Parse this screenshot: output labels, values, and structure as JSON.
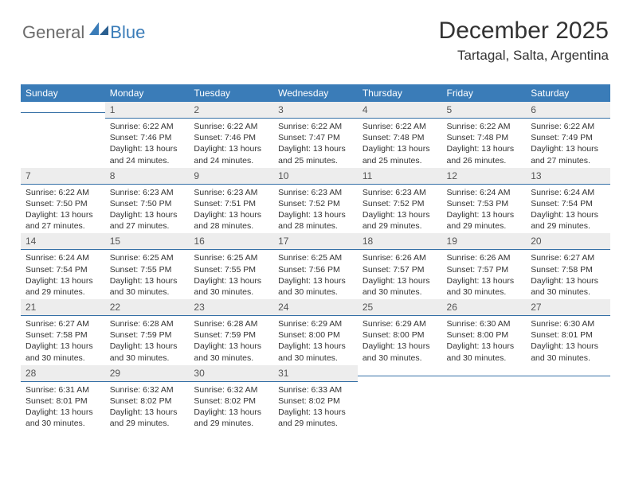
{
  "logo": {
    "word1": "General",
    "word2": "Blue"
  },
  "header": {
    "month_title": "December 2025",
    "location": "Tartagal, Salta, Argentina"
  },
  "colors": {
    "accent": "#3a7cb8",
    "header_text": "#ffffff",
    "daynum_bg": "#ededed",
    "daynum_border": "#3670a6",
    "body_text": "#333333",
    "logo_gray": "#6b6b6b"
  },
  "calendar": {
    "day_headers": [
      "Sunday",
      "Monday",
      "Tuesday",
      "Wednesday",
      "Thursday",
      "Friday",
      "Saturday"
    ],
    "weeks": [
      [
        null,
        {
          "n": "1",
          "sunrise": "6:22 AM",
          "sunset": "7:46 PM",
          "day_h": "13",
          "day_m": "24"
        },
        {
          "n": "2",
          "sunrise": "6:22 AM",
          "sunset": "7:46 PM",
          "day_h": "13",
          "day_m": "24"
        },
        {
          "n": "3",
          "sunrise": "6:22 AM",
          "sunset": "7:47 PM",
          "day_h": "13",
          "day_m": "25"
        },
        {
          "n": "4",
          "sunrise": "6:22 AM",
          "sunset": "7:48 PM",
          "day_h": "13",
          "day_m": "25"
        },
        {
          "n": "5",
          "sunrise": "6:22 AM",
          "sunset": "7:48 PM",
          "day_h": "13",
          "day_m": "26"
        },
        {
          "n": "6",
          "sunrise": "6:22 AM",
          "sunset": "7:49 PM",
          "day_h": "13",
          "day_m": "27"
        }
      ],
      [
        {
          "n": "7",
          "sunrise": "6:22 AM",
          "sunset": "7:50 PM",
          "day_h": "13",
          "day_m": "27"
        },
        {
          "n": "8",
          "sunrise": "6:23 AM",
          "sunset": "7:50 PM",
          "day_h": "13",
          "day_m": "27"
        },
        {
          "n": "9",
          "sunrise": "6:23 AM",
          "sunset": "7:51 PM",
          "day_h": "13",
          "day_m": "28"
        },
        {
          "n": "10",
          "sunrise": "6:23 AM",
          "sunset": "7:52 PM",
          "day_h": "13",
          "day_m": "28"
        },
        {
          "n": "11",
          "sunrise": "6:23 AM",
          "sunset": "7:52 PM",
          "day_h": "13",
          "day_m": "29"
        },
        {
          "n": "12",
          "sunrise": "6:24 AM",
          "sunset": "7:53 PM",
          "day_h": "13",
          "day_m": "29"
        },
        {
          "n": "13",
          "sunrise": "6:24 AM",
          "sunset": "7:54 PM",
          "day_h": "13",
          "day_m": "29"
        }
      ],
      [
        {
          "n": "14",
          "sunrise": "6:24 AM",
          "sunset": "7:54 PM",
          "day_h": "13",
          "day_m": "29"
        },
        {
          "n": "15",
          "sunrise": "6:25 AM",
          "sunset": "7:55 PM",
          "day_h": "13",
          "day_m": "30"
        },
        {
          "n": "16",
          "sunrise": "6:25 AM",
          "sunset": "7:55 PM",
          "day_h": "13",
          "day_m": "30"
        },
        {
          "n": "17",
          "sunrise": "6:25 AM",
          "sunset": "7:56 PM",
          "day_h": "13",
          "day_m": "30"
        },
        {
          "n": "18",
          "sunrise": "6:26 AM",
          "sunset": "7:57 PM",
          "day_h": "13",
          "day_m": "30"
        },
        {
          "n": "19",
          "sunrise": "6:26 AM",
          "sunset": "7:57 PM",
          "day_h": "13",
          "day_m": "30"
        },
        {
          "n": "20",
          "sunrise": "6:27 AM",
          "sunset": "7:58 PM",
          "day_h": "13",
          "day_m": "30"
        }
      ],
      [
        {
          "n": "21",
          "sunrise": "6:27 AM",
          "sunset": "7:58 PM",
          "day_h": "13",
          "day_m": "30"
        },
        {
          "n": "22",
          "sunrise": "6:28 AM",
          "sunset": "7:59 PM",
          "day_h": "13",
          "day_m": "30"
        },
        {
          "n": "23",
          "sunrise": "6:28 AM",
          "sunset": "7:59 PM",
          "day_h": "13",
          "day_m": "30"
        },
        {
          "n": "24",
          "sunrise": "6:29 AM",
          "sunset": "8:00 PM",
          "day_h": "13",
          "day_m": "30"
        },
        {
          "n": "25",
          "sunrise": "6:29 AM",
          "sunset": "8:00 PM",
          "day_h": "13",
          "day_m": "30"
        },
        {
          "n": "26",
          "sunrise": "6:30 AM",
          "sunset": "8:00 PM",
          "day_h": "13",
          "day_m": "30"
        },
        {
          "n": "27",
          "sunrise": "6:30 AM",
          "sunset": "8:01 PM",
          "day_h": "13",
          "day_m": "30"
        }
      ],
      [
        {
          "n": "28",
          "sunrise": "6:31 AM",
          "sunset": "8:01 PM",
          "day_h": "13",
          "day_m": "30"
        },
        {
          "n": "29",
          "sunrise": "6:32 AM",
          "sunset": "8:02 PM",
          "day_h": "13",
          "day_m": "29"
        },
        {
          "n": "30",
          "sunrise": "6:32 AM",
          "sunset": "8:02 PM",
          "day_h": "13",
          "day_m": "29"
        },
        {
          "n": "31",
          "sunrise": "6:33 AM",
          "sunset": "8:02 PM",
          "day_h": "13",
          "day_m": "29"
        },
        null,
        null,
        null
      ]
    ]
  },
  "labels": {
    "sunrise": "Sunrise: ",
    "sunset": "Sunset: ",
    "daylight_prefix": "Daylight: ",
    "hours_word": " hours",
    "and_word": "and ",
    "minutes_word": " minutes."
  }
}
